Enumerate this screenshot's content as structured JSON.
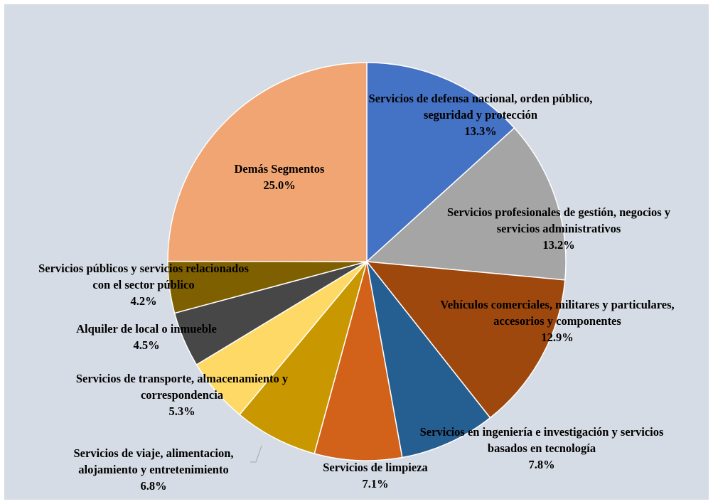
{
  "chart_data": {
    "type": "pie",
    "categories": [
      "Servicios de defensa nacional, orden público, seguridad y protección",
      "Servicios profesionales de gestión, negocios y servicios administrativos",
      "Vehículos comerciales, militares y particulares, accesorios y componentes",
      "Servicios en ingeniería e investigación y servicios basados en tecnología",
      "Servicios de limpieza",
      "Servicios de viaje, alimentacion, alojamiento y entretenimiento",
      "Servicios de transporte, almacenamiento y correspondencia",
      "Alquiler de local o inmueble",
      "Servicios públicos y servicios relacionados con el sector público",
      "Demás Segmentos"
    ],
    "values": [
      13.3,
      13.2,
      12.9,
      7.8,
      7.1,
      6.8,
      5.3,
      4.5,
      4.2,
      25.0
    ],
    "value_labels": [
      "13.3%",
      "13.2%",
      "12.9%",
      "7.8%",
      "7.1%",
      "6.8%",
      "5.3%",
      "4.5%",
      "4.2%",
      "25.0%"
    ],
    "colors": [
      "#4472c4",
      "#a5a5a5",
      "#9e480e",
      "#255e91",
      "#d2621a",
      "#c99700",
      "#ffd966",
      "#474747",
      "#7f6000",
      "#f0a572"
    ]
  }
}
